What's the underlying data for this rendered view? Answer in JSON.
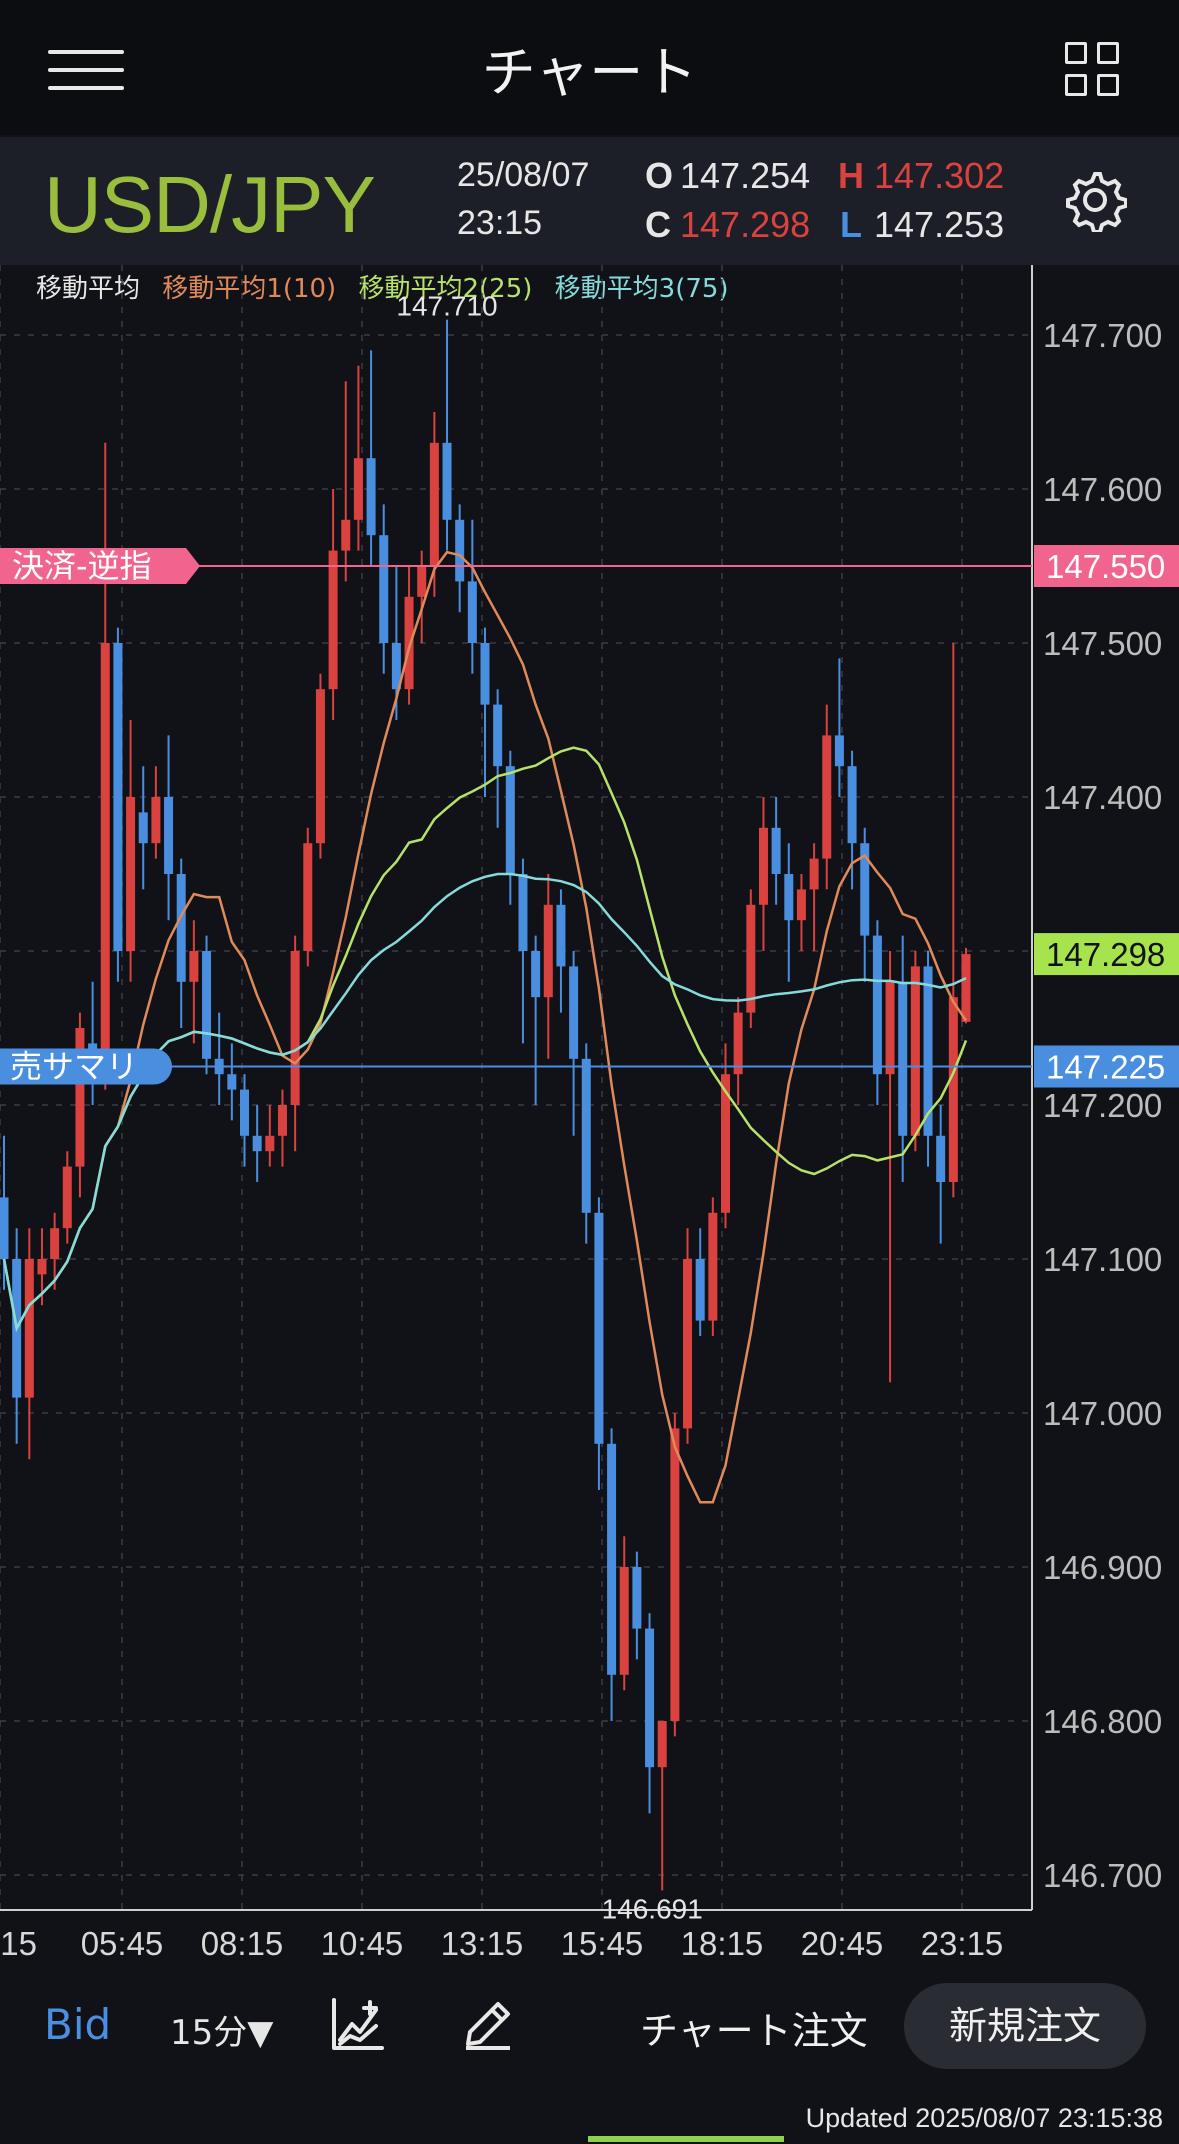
{
  "header": {
    "title": "チャート"
  },
  "info": {
    "symbol": "USD/JPY",
    "date": "25/08/07",
    "time": "23:15",
    "open_label": "O",
    "open": "147.254",
    "high_label": "H",
    "high": "147.302",
    "close_label": "C",
    "close": "147.298",
    "low_label": "L",
    "low": "147.253"
  },
  "legend": {
    "title": "移動平均",
    "ma1": "移動平均1(10)",
    "ma2": "移動平均2(25)",
    "ma3": "移動平均3(75)"
  },
  "colors": {
    "up": "#d9423f",
    "down": "#4a8ee0",
    "ma1": "#e08a5a",
    "ma2": "#b7e26a",
    "ma3": "#86dada",
    "stop_line": "#f0648e",
    "sell_line": "#4a8ee0",
    "current": "#a6e34c"
  },
  "chart_data": {
    "type": "candlestick",
    "ylim": [
      146.67,
      147.75
    ],
    "y_ticks": [
      "147.700",
      "147.600",
      "147.500",
      "147.400",
      "147.300",
      "147.200",
      "147.100",
      "147.000",
      "146.900",
      "146.800",
      "146.700"
    ],
    "x_ticks": [
      ":15",
      "05:45",
      "08:15",
      "10:45",
      "13:15",
      "15:45",
      "18:15",
      "20:45",
      "23:15"
    ],
    "max_label": "147.710",
    "min_label": "146.691",
    "stop_order": {
      "label": "決済-逆指",
      "price": "147.550",
      "value": 147.55
    },
    "sell_summary": {
      "label": "売サマリ",
      "price": "147.225",
      "value": 147.225
    },
    "current_price": {
      "price": "147.298",
      "value": 147.298
    },
    "candles": [
      [
        147.14,
        147.18,
        147.08,
        147.1
      ],
      [
        147.1,
        147.12,
        146.98,
        147.01
      ],
      [
        147.01,
        147.12,
        146.97,
        147.1
      ],
      [
        147.09,
        147.12,
        147.07,
        147.1
      ],
      [
        147.1,
        147.13,
        147.08,
        147.12
      ],
      [
        147.12,
        147.17,
        147.11,
        147.16
      ],
      [
        147.16,
        147.26,
        147.14,
        147.25
      ],
      [
        147.24,
        147.28,
        147.2,
        147.22
      ],
      [
        147.22,
        147.63,
        147.21,
        147.5
      ],
      [
        147.5,
        147.51,
        147.28,
        147.3
      ],
      [
        147.3,
        147.45,
        147.28,
        147.4
      ],
      [
        147.39,
        147.42,
        147.34,
        147.37
      ],
      [
        147.37,
        147.42,
        147.36,
        147.4
      ],
      [
        147.4,
        147.44,
        147.32,
        147.35
      ],
      [
        147.35,
        147.36,
        147.25,
        147.28
      ],
      [
        147.28,
        147.32,
        147.24,
        147.3
      ],
      [
        147.3,
        147.31,
        147.22,
        147.23
      ],
      [
        147.23,
        147.26,
        147.2,
        147.22
      ],
      [
        147.22,
        147.24,
        147.19,
        147.21
      ],
      [
        147.21,
        147.22,
        147.16,
        147.18
      ],
      [
        147.18,
        147.2,
        147.15,
        147.17
      ],
      [
        147.17,
        147.2,
        147.16,
        147.18
      ],
      [
        147.18,
        147.21,
        147.16,
        147.2
      ],
      [
        147.2,
        147.31,
        147.17,
        147.3
      ],
      [
        147.3,
        147.38,
        147.29,
        147.37
      ],
      [
        147.37,
        147.48,
        147.36,
        147.47
      ],
      [
        147.47,
        147.6,
        147.45,
        147.56
      ],
      [
        147.56,
        147.67,
        147.54,
        147.58
      ],
      [
        147.58,
        147.68,
        147.56,
        147.62
      ],
      [
        147.62,
        147.69,
        147.55,
        147.57
      ],
      [
        147.57,
        147.59,
        147.48,
        147.5
      ],
      [
        147.5,
        147.55,
        147.45,
        147.47
      ],
      [
        147.47,
        147.55,
        147.46,
        147.53
      ],
      [
        147.53,
        147.56,
        147.5,
        147.55
      ],
      [
        147.55,
        147.65,
        147.53,
        147.63
      ],
      [
        147.63,
        147.71,
        147.56,
        147.58
      ],
      [
        147.58,
        147.59,
        147.52,
        147.54
      ],
      [
        147.54,
        147.58,
        147.48,
        147.5
      ],
      [
        147.5,
        147.51,
        147.4,
        147.46
      ],
      [
        147.46,
        147.47,
        147.38,
        147.42
      ],
      [
        147.42,
        147.43,
        147.33,
        147.35
      ],
      [
        147.35,
        147.36,
        147.24,
        147.3
      ],
      [
        147.3,
        147.31,
        147.2,
        147.27
      ],
      [
        147.27,
        147.35,
        147.23,
        147.33
      ],
      [
        147.33,
        147.34,
        147.26,
        147.29
      ],
      [
        147.29,
        147.3,
        147.18,
        147.23
      ],
      [
        147.23,
        147.24,
        147.11,
        147.13
      ],
      [
        147.13,
        147.14,
        146.95,
        146.98
      ],
      [
        146.98,
        146.99,
        146.8,
        146.83
      ],
      [
        146.83,
        146.92,
        146.82,
        146.9
      ],
      [
        146.9,
        146.91,
        146.84,
        146.86
      ],
      [
        146.86,
        146.87,
        146.74,
        146.77
      ],
      [
        146.77,
        146.8,
        146.69,
        146.8
      ],
      [
        146.8,
        147.0,
        146.79,
        146.99
      ],
      [
        146.99,
        147.12,
        146.98,
        147.1
      ],
      [
        147.1,
        147.12,
        147.05,
        147.06
      ],
      [
        147.06,
        147.14,
        147.05,
        147.13
      ],
      [
        147.13,
        147.24,
        147.12,
        147.22
      ],
      [
        147.22,
        147.27,
        147.2,
        147.26
      ],
      [
        147.26,
        147.34,
        147.25,
        147.33
      ],
      [
        147.33,
        147.4,
        147.3,
        147.38
      ],
      [
        147.38,
        147.4,
        147.33,
        147.35
      ],
      [
        147.35,
        147.37,
        147.28,
        147.32
      ],
      [
        147.32,
        147.35,
        147.3,
        147.34
      ],
      [
        147.34,
        147.37,
        147.3,
        147.36
      ],
      [
        147.36,
        147.46,
        147.34,
        147.44
      ],
      [
        147.44,
        147.49,
        147.4,
        147.42
      ],
      [
        147.42,
        147.43,
        147.34,
        147.37
      ],
      [
        147.37,
        147.38,
        147.28,
        147.31
      ],
      [
        147.31,
        147.32,
        147.2,
        147.22
      ],
      [
        147.22,
        147.3,
        147.02,
        147.28
      ],
      [
        147.28,
        147.31,
        147.15,
        147.18
      ],
      [
        147.18,
        147.3,
        147.17,
        147.29
      ],
      [
        147.29,
        147.3,
        147.16,
        147.18
      ],
      [
        147.18,
        147.2,
        147.11,
        147.15
      ],
      [
        147.15,
        147.5,
        147.14,
        147.27
      ],
      [
        147.254,
        147.302,
        147.253,
        147.298
      ]
    ]
  },
  "toolbar": {
    "bid": "Bid",
    "timeframe": "15分▼",
    "chart_order": "チャート注文",
    "new_order": "新規注文"
  },
  "status": {
    "updated": "Updated  2025/08/07 23:15:38"
  }
}
